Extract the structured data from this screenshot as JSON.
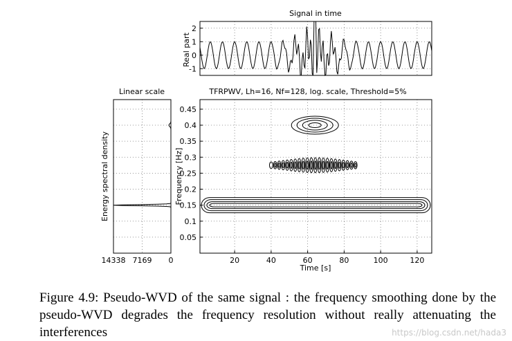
{
  "chart_data": [
    {
      "id": "signal",
      "type": "line",
      "title": "Signal in time",
      "xlabel": "",
      "ylabel": "Real part",
      "xlim": [
        1,
        128
      ],
      "ylim": [
        -1.5,
        2.5
      ],
      "yticks": [
        -1,
        0,
        1,
        2
      ],
      "grid": true,
      "description_series": "sinusoid ~0.15 Hz with a chirp-like transient near t=64"
    },
    {
      "id": "spectrum",
      "type": "line",
      "title": "Linear scale",
      "xlabel": "",
      "ylabel": "Energy spectral density",
      "xticks": [
        14338,
        7169,
        0
      ],
      "xlim": [
        14338,
        0
      ],
      "ylim": [
        0,
        0.5
      ],
      "grid": true,
      "peaks": [
        {
          "freq": 0.15,
          "value": 14338
        },
        {
          "freq": 0.4,
          "value": 500
        }
      ]
    },
    {
      "id": "tfr",
      "type": "contour",
      "title": "TFRPWV, Lh=16, Nf=128, log. scale, Threshold=5%",
      "xlabel": "Time [s]",
      "ylabel": "Frequency [Hz]",
      "xlim": [
        1,
        128
      ],
      "ylim": [
        0,
        0.48
      ],
      "xticks": [
        20,
        40,
        60,
        80,
        100,
        120
      ],
      "yticks": [
        0.05,
        0.1,
        0.15,
        0.2,
        0.25,
        0.3,
        0.35,
        0.4,
        0.45
      ],
      "grid": true,
      "components": [
        {
          "name": "sinusoid",
          "freq": 0.15,
          "t_start": 1,
          "t_end": 128
        },
        {
          "name": "atom",
          "freq": 0.4,
          "t_center": 64
        },
        {
          "name": "interference",
          "freq": 0.275,
          "t_start": 40,
          "t_end": 88
        }
      ]
    }
  ],
  "caption": {
    "text": "Figure 4.9:  Pseudo-WVD of the same signal :  the frequency smoothing done by the pseudo-WVD degrades the frequency resolution without really attenuating the interferences"
  },
  "watermark": "https://blog.csdn.net/hada3"
}
